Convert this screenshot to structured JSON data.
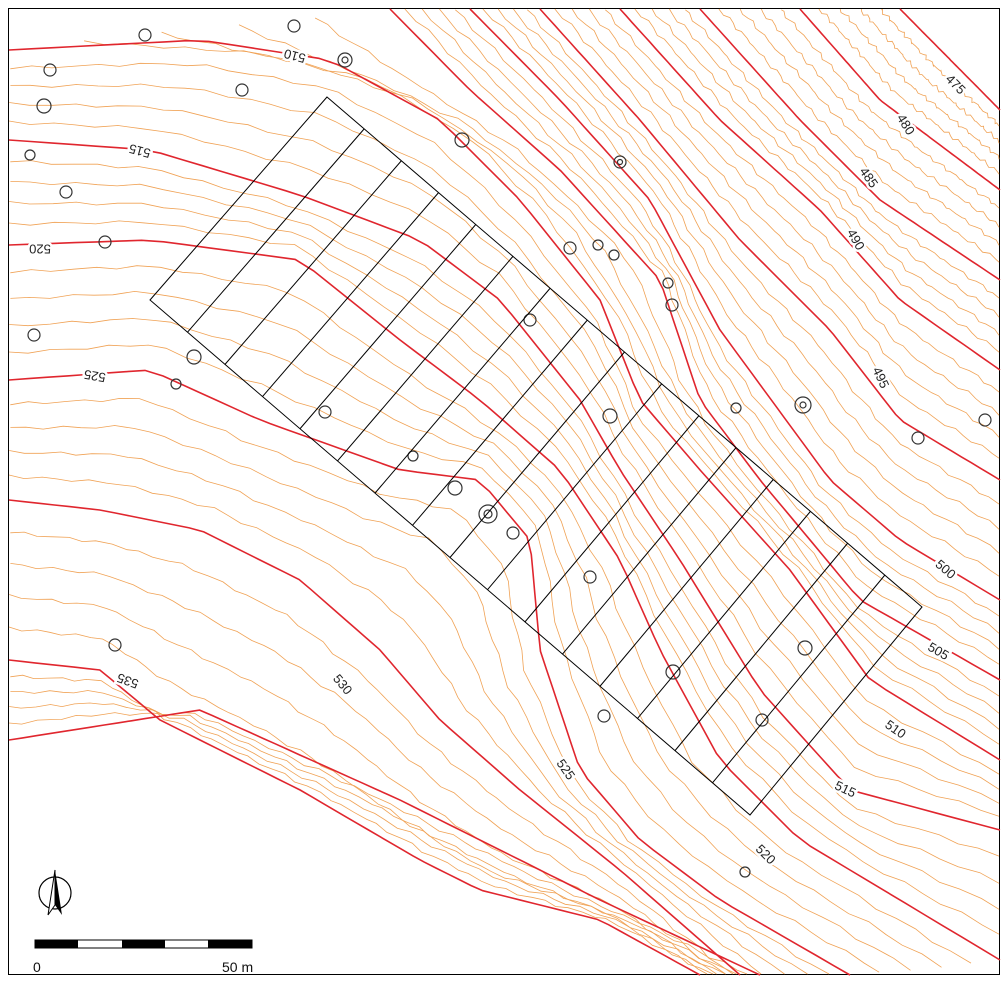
{
  "contour_labels": [
    "475",
    "480",
    "485",
    "490",
    "495",
    "500",
    "505",
    "510",
    "515",
    "520",
    "525",
    "530",
    "535",
    "525",
    "520",
    "515",
    "510"
  ],
  "scale_bar": {
    "start": "0",
    "end": "50 m"
  }
}
